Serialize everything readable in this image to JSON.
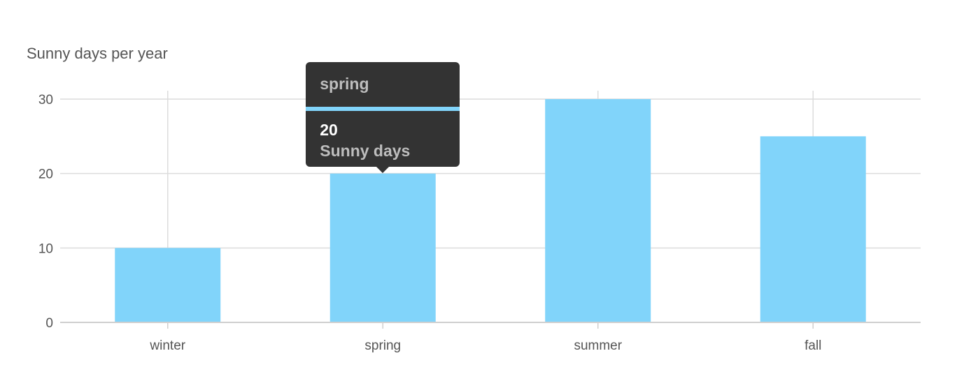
{
  "chart_data": {
    "type": "bar",
    "title": "Sunny days per year",
    "categories": [
      "winter",
      "spring",
      "summer",
      "fall"
    ],
    "series": [
      {
        "values": [
          10,
          20,
          30,
          25
        ]
      }
    ],
    "ylim": [
      0,
      30
    ],
    "yticks": [
      0,
      10,
      20,
      30
    ],
    "grid": true,
    "bar_color": "#81d4fa",
    "tooltip": {
      "title": "spring",
      "value": "20",
      "label": "Sunny days"
    }
  }
}
